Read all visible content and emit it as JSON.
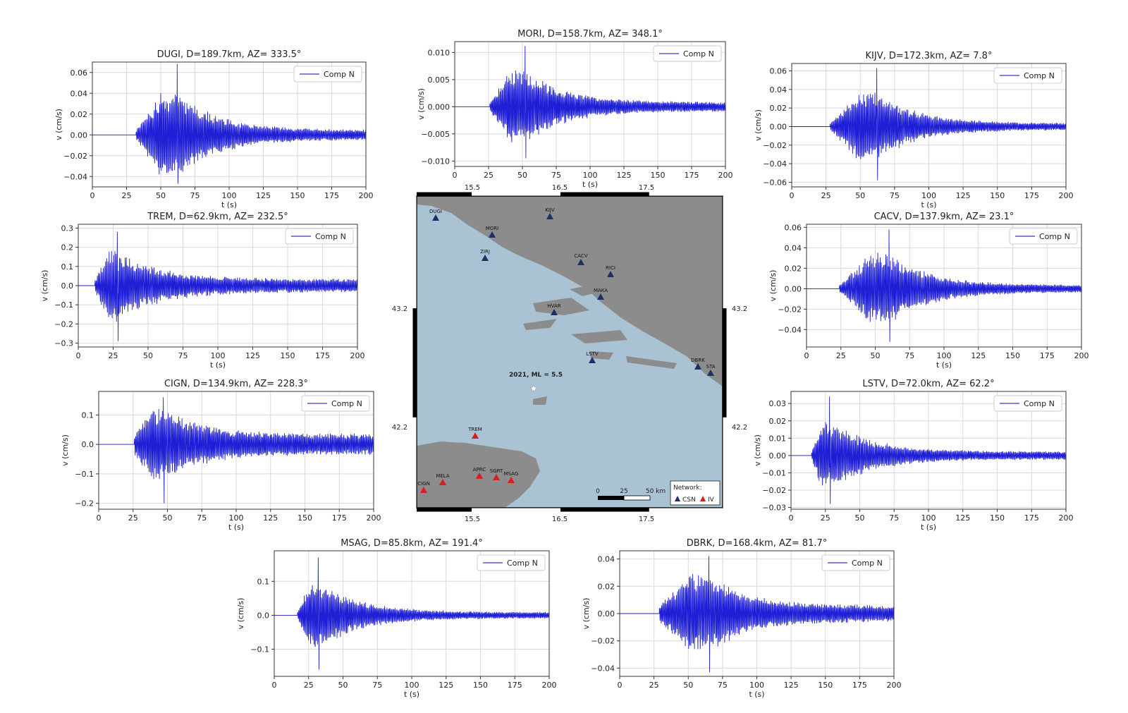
{
  "legend_label": "Comp N",
  "x_label": "t (s)",
  "y_label": "v (cm/s)",
  "colors": {
    "trace": "#1f1fd6",
    "trace_flat": "#5a5ad0",
    "grid": "#d9d9d9",
    "sea": "#a9c2d4",
    "land": "#8c8c8c",
    "csn_marker": "#1f2f66",
    "iv_marker": "#d42020"
  },
  "chart_data": [
    {
      "type": "line",
      "station": "DUGI",
      "title": "DUGI, D=189.7km, AZ= 333.5°",
      "xlabel": "t (s)",
      "ylabel": "v (cm/s)",
      "xlim": [
        0,
        200
      ],
      "ylim": [
        -0.05,
        0.07
      ],
      "x_ticks": [
        0,
        25,
        50,
        75,
        100,
        125,
        150,
        175,
        200
      ],
      "y_ticks": [
        -0.04,
        -0.02,
        0.0,
        0.02,
        0.04,
        0.06
      ],
      "y_tick_labels": [
        "−0.04",
        "−0.02",
        "0.00",
        "0.02",
        "0.04",
        "0.06"
      ],
      "series": [
        {
          "name": "Comp N",
          "onset": 32,
          "peak_time": 62,
          "peak_pos": 0.068,
          "peak_neg": -0.047,
          "coda": 0.004
        }
      ]
    },
    {
      "type": "line",
      "station": "MORI",
      "title": "MORI, D=158.7km, AZ= 348.1°",
      "xlabel": "t (s)",
      "ylabel": "v (cm/s)",
      "xlim": [
        0,
        200
      ],
      "ylim": [
        -0.011,
        0.012
      ],
      "x_ticks": [
        0,
        25,
        50,
        75,
        100,
        125,
        150,
        175,
        200
      ],
      "y_ticks": [
        -0.01,
        -0.005,
        0.0,
        0.005,
        0.01
      ],
      "y_tick_labels": [
        "−0.010",
        "−0.005",
        "0.000",
        "0.005",
        "0.010"
      ],
      "series": [
        {
          "name": "Comp N",
          "onset": 26,
          "peak_time": 52,
          "peak_pos": 0.0112,
          "peak_neg": -0.0095,
          "coda": 0.0007
        }
      ]
    },
    {
      "type": "line",
      "station": "KIJV",
      "title": "KIJV, D=172.3km, AZ= 7.8°",
      "xlabel": "t (s)",
      "ylabel": "v (cm/s)",
      "xlim": [
        0,
        200
      ],
      "ylim": [
        -0.065,
        0.068
      ],
      "x_ticks": [
        0,
        25,
        50,
        75,
        100,
        125,
        150,
        175,
        200
      ],
      "y_ticks": [
        -0.06,
        -0.04,
        -0.02,
        0.0,
        0.02,
        0.04,
        0.06
      ],
      "y_tick_labels": [
        "−0.06",
        "−0.04",
        "−0.02",
        "0.00",
        "0.02",
        "0.04",
        "0.06"
      ],
      "series": [
        {
          "name": "Comp N",
          "onset": 28,
          "peak_time": 62,
          "peak_pos": 0.063,
          "peak_neg": -0.058,
          "coda": 0.003
        }
      ]
    },
    {
      "type": "line",
      "station": "TREM",
      "title": "TREM, D=62.9km, AZ= 232.5°",
      "xlabel": "t (s)",
      "ylabel": "v (cm/s)",
      "xlim": [
        0,
        200
      ],
      "ylim": [
        -0.32,
        0.32
      ],
      "x_ticks": [
        0,
        25,
        50,
        75,
        100,
        125,
        150,
        175,
        200
      ],
      "y_ticks": [
        -0.3,
        -0.2,
        -0.1,
        0.0,
        0.1,
        0.2,
        0.3
      ],
      "y_tick_labels": [
        "−0.3",
        "−0.2",
        "−0.1",
        "0.0",
        "0.1",
        "0.2",
        "0.3"
      ],
      "series": [
        {
          "name": "Comp N",
          "onset": 12,
          "peak_time": 28,
          "peak_pos": 0.28,
          "peak_neg": -0.29,
          "coda": 0.03
        }
      ]
    },
    {
      "type": "line",
      "station": "CACV",
      "title": "CACV, D=137.9km, AZ= 23.1°",
      "xlabel": "t (s)",
      "ylabel": "v (cm/s)",
      "xlim": [
        0,
        200
      ],
      "ylim": [
        -0.057,
        0.063
      ],
      "x_ticks": [
        0,
        25,
        50,
        75,
        100,
        125,
        150,
        175,
        200
      ],
      "y_ticks": [
        -0.04,
        -0.02,
        0.0,
        0.02,
        0.04,
        0.06
      ],
      "y_tick_labels": [
        "−0.04",
        "−0.02",
        "0.00",
        "0.02",
        "0.04",
        "0.06"
      ],
      "series": [
        {
          "name": "Comp N",
          "onset": 24,
          "peak_time": 60,
          "peak_pos": 0.058,
          "peak_neg": -0.052,
          "coda": 0.003
        }
      ]
    },
    {
      "type": "line",
      "station": "CIGN",
      "title": "CIGN, D=134.9km, AZ= 228.3°",
      "xlabel": "t (s)",
      "ylabel": "v (cm/s)",
      "xlim": [
        0,
        200
      ],
      "ylim": [
        -0.22,
        0.18
      ],
      "x_ticks": [
        0,
        25,
        50,
        75,
        100,
        125,
        150,
        175,
        200
      ],
      "y_ticks": [
        -0.2,
        -0.1,
        0.0,
        0.1
      ],
      "y_tick_labels": [
        "−0.2",
        "−0.1",
        "0.0",
        "0.1"
      ],
      "series": [
        {
          "name": "Comp N",
          "onset": 26,
          "peak_time": 47,
          "peak_pos": 0.16,
          "peak_neg": -0.2,
          "coda": 0.03
        }
      ]
    },
    {
      "type": "line",
      "station": "LSTV",
      "title": "LSTV, D=72.0km, AZ= 62.2°",
      "xlabel": "t (s)",
      "ylabel": "v (cm/s)",
      "xlim": [
        0,
        200
      ],
      "ylim": [
        -0.031,
        0.037
      ],
      "x_ticks": [
        0,
        25,
        50,
        75,
        100,
        125,
        150,
        175,
        200
      ],
      "y_ticks": [
        -0.03,
        -0.02,
        -0.01,
        0.0,
        0.01,
        0.02,
        0.03
      ],
      "y_tick_labels": [
        "−0.03",
        "−0.02",
        "−0.01",
        "0.00",
        "0.01",
        "0.02",
        "0.03"
      ],
      "series": [
        {
          "name": "Comp N",
          "onset": 15,
          "peak_time": 28,
          "peak_pos": 0.034,
          "peak_neg": -0.028,
          "coda": 0.002
        }
      ]
    },
    {
      "type": "line",
      "station": "MSAG",
      "title": "MSAG, D=85.8km, AZ= 191.4°",
      "xlabel": "t (s)",
      "ylabel": "v (cm/s)",
      "xlim": [
        0,
        200
      ],
      "ylim": [
        -0.18,
        0.19
      ],
      "x_ticks": [
        0,
        25,
        50,
        75,
        100,
        125,
        150,
        175,
        200
      ],
      "y_ticks": [
        -0.1,
        0.0,
        0.1
      ],
      "y_tick_labels": [
        "−0.1",
        "0.0",
        "0.1"
      ],
      "series": [
        {
          "name": "Comp N",
          "onset": 17,
          "peak_time": 32,
          "peak_pos": 0.17,
          "peak_neg": -0.16,
          "coda": 0.008
        }
      ]
    },
    {
      "type": "line",
      "station": "DBRK",
      "title": "DBRK, D=168.4km, AZ= 81.7°",
      "xlabel": "t (s)",
      "ylabel": "v (cm/s)",
      "xlim": [
        0,
        200
      ],
      "ylim": [
        -0.046,
        0.046
      ],
      "x_ticks": [
        0,
        25,
        50,
        75,
        100,
        125,
        150,
        175,
        200
      ],
      "y_ticks": [
        -0.04,
        -0.02,
        0.0,
        0.02,
        0.04
      ],
      "y_tick_labels": [
        "−0.04",
        "−0.02",
        "0.00",
        "0.02",
        "0.04"
      ],
      "series": [
        {
          "name": "Comp N",
          "onset": 29,
          "peak_time": 65,
          "peak_pos": 0.042,
          "peak_neg": -0.043,
          "coda": 0.005
        }
      ]
    }
  ],
  "map": {
    "event_label": "2021, ML = 5.5",
    "lon_ticks": [
      "15.5",
      "16.5",
      "17.5"
    ],
    "lat_ticks": [
      "43.2",
      "42.2"
    ],
    "scalebar": {
      "labels": [
        "0",
        "25",
        "50 km"
      ]
    },
    "legend": {
      "title": "Network:",
      "entries": [
        {
          "name": "CSN",
          "color_key": "csn_marker"
        },
        {
          "name": "IV",
          "color_key": "iv_marker"
        }
      ]
    },
    "stations": [
      {
        "code": "DUGI",
        "network": "CSN"
      },
      {
        "code": "MORI",
        "network": "CSN"
      },
      {
        "code": "KIJV",
        "network": "CSN"
      },
      {
        "code": "ZIRJ",
        "network": "CSN"
      },
      {
        "code": "CACV",
        "network": "CSN"
      },
      {
        "code": "RICI",
        "network": "CSN"
      },
      {
        "code": "MAKA",
        "network": "CSN"
      },
      {
        "code": "HVAR",
        "network": "CSN"
      },
      {
        "code": "LSTV",
        "network": "CSN"
      },
      {
        "code": "DBRK",
        "network": "CSN"
      },
      {
        "code": "STA",
        "network": "CSN"
      },
      {
        "code": "TREM",
        "network": "IV"
      },
      {
        "code": "MELA",
        "network": "IV"
      },
      {
        "code": "APRC",
        "network": "IV"
      },
      {
        "code": "SGRT",
        "network": "IV"
      },
      {
        "code": "MSAG",
        "network": "IV"
      },
      {
        "code": "CIGN",
        "network": "IV"
      }
    ]
  }
}
